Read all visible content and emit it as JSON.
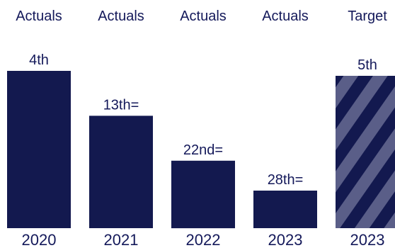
{
  "chart_data": {
    "type": "bar",
    "value_meaning": "rank (lower is better; bar height inverse to rank)",
    "categories": [
      "2020",
      "2021",
      "2022",
      "2023",
      "2023"
    ],
    "series": [
      {
        "group_labels": [
          "Actuals",
          "Actuals",
          "Actuals",
          "Actuals",
          "Target"
        ],
        "data_labels": [
          "4th",
          "13th=",
          "22nd=",
          "28th=",
          "5th"
        ],
        "ranks": [
          4,
          13,
          22,
          28,
          5
        ]
      }
    ],
    "styles": [
      "solid",
      "solid",
      "solid",
      "solid",
      "hatched"
    ],
    "colors": {
      "bar": "#13194f",
      "hatch_light": "#5a5e88",
      "text": "#14195a"
    }
  }
}
